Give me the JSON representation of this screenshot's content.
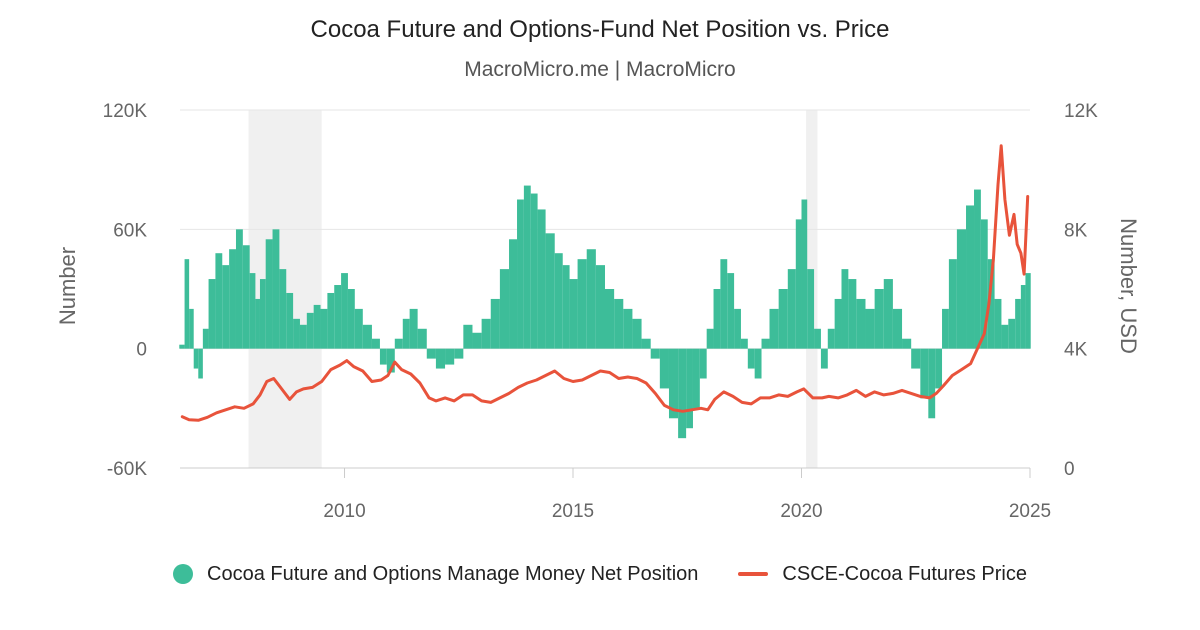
{
  "header": {
    "title": "Cocoa Future and Options-Fund Net Position vs. Price",
    "subtitle": "MacroMicro.me | MacroMicro"
  },
  "colors": {
    "position": "#3dbd99",
    "price": "#e8533b",
    "recession": "#f0f0f0",
    "grid": "#e6e6e6"
  },
  "chart_data": {
    "type": "bar+line",
    "title": "Cocoa Future and Options-Fund Net Position vs. Price",
    "subtitle": "MacroMicro.me | MacroMicro",
    "x_axis": {
      "type": "time",
      "range": [
        2006.4,
        2025.0
      ],
      "ticks": [
        2010,
        2015,
        2020,
        2025
      ],
      "tick_labels": [
        "2010",
        "2015",
        "2020",
        "2025"
      ]
    },
    "y_axis_left": {
      "label": "Number",
      "range": [
        -60000,
        120000
      ],
      "ticks": [
        -60000,
        0,
        60000,
        120000
      ],
      "tick_labels": [
        "-60K",
        "0",
        "60K",
        "120K"
      ]
    },
    "y_axis_right": {
      "label": "Number, USD",
      "range": [
        0,
        12000
      ],
      "ticks": [
        0,
        4000,
        8000,
        12000
      ],
      "tick_labels": [
        "0",
        "4K",
        "8K",
        "12K"
      ]
    },
    "recession_bands": [
      [
        2007.9,
        2009.5
      ],
      [
        2020.1,
        2020.35
      ]
    ],
    "series": [
      {
        "name": "Cocoa Future and Options Manage Money Net Position",
        "type": "bar",
        "axis": "left",
        "points": [
          [
            2006.45,
            2000
          ],
          [
            2006.55,
            45000
          ],
          [
            2006.65,
            20000
          ],
          [
            2006.75,
            -10000
          ],
          [
            2006.85,
            -15000
          ],
          [
            2006.95,
            10000
          ],
          [
            2007.1,
            35000
          ],
          [
            2007.25,
            48000
          ],
          [
            2007.4,
            42000
          ],
          [
            2007.55,
            50000
          ],
          [
            2007.7,
            60000
          ],
          [
            2007.85,
            52000
          ],
          [
            2008.0,
            38000
          ],
          [
            2008.1,
            25000
          ],
          [
            2008.2,
            35000
          ],
          [
            2008.35,
            55000
          ],
          [
            2008.5,
            60000
          ],
          [
            2008.65,
            40000
          ],
          [
            2008.8,
            28000
          ],
          [
            2008.95,
            15000
          ],
          [
            2009.1,
            12000
          ],
          [
            2009.25,
            18000
          ],
          [
            2009.4,
            22000
          ],
          [
            2009.55,
            20000
          ],
          [
            2009.7,
            28000
          ],
          [
            2009.85,
            32000
          ],
          [
            2010.0,
            38000
          ],
          [
            2010.15,
            30000
          ],
          [
            2010.3,
            20000
          ],
          [
            2010.5,
            12000
          ],
          [
            2010.7,
            5000
          ],
          [
            2010.85,
            -8000
          ],
          [
            2011.0,
            -12000
          ],
          [
            2011.2,
            5000
          ],
          [
            2011.35,
            15000
          ],
          [
            2011.5,
            20000
          ],
          [
            2011.7,
            10000
          ],
          [
            2011.9,
            -5000
          ],
          [
            2012.1,
            -10000
          ],
          [
            2012.3,
            -8000
          ],
          [
            2012.5,
            -5000
          ],
          [
            2012.7,
            12000
          ],
          [
            2012.9,
            8000
          ],
          [
            2013.1,
            15000
          ],
          [
            2013.3,
            25000
          ],
          [
            2013.5,
            40000
          ],
          [
            2013.7,
            55000
          ],
          [
            2013.85,
            75000
          ],
          [
            2014.0,
            82000
          ],
          [
            2014.15,
            78000
          ],
          [
            2014.3,
            70000
          ],
          [
            2014.5,
            58000
          ],
          [
            2014.7,
            48000
          ],
          [
            2014.85,
            42000
          ],
          [
            2015.0,
            35000
          ],
          [
            2015.2,
            45000
          ],
          [
            2015.4,
            50000
          ],
          [
            2015.6,
            42000
          ],
          [
            2015.8,
            30000
          ],
          [
            2016.0,
            25000
          ],
          [
            2016.2,
            20000
          ],
          [
            2016.4,
            15000
          ],
          [
            2016.6,
            5000
          ],
          [
            2016.8,
            -5000
          ],
          [
            2017.0,
            -20000
          ],
          [
            2017.2,
            -35000
          ],
          [
            2017.4,
            -45000
          ],
          [
            2017.55,
            -40000
          ],
          [
            2017.7,
            -30000
          ],
          [
            2017.85,
            -15000
          ],
          [
            2018.0,
            10000
          ],
          [
            2018.15,
            30000
          ],
          [
            2018.3,
            45000
          ],
          [
            2018.45,
            38000
          ],
          [
            2018.6,
            20000
          ],
          [
            2018.75,
            5000
          ],
          [
            2018.9,
            -10000
          ],
          [
            2019.05,
            -15000
          ],
          [
            2019.2,
            5000
          ],
          [
            2019.4,
            20000
          ],
          [
            2019.6,
            30000
          ],
          [
            2019.8,
            40000
          ],
          [
            2019.95,
            65000
          ],
          [
            2020.05,
            75000
          ],
          [
            2020.2,
            40000
          ],
          [
            2020.35,
            10000
          ],
          [
            2020.5,
            -10000
          ],
          [
            2020.65,
            10000
          ],
          [
            2020.8,
            25000
          ],
          [
            2020.95,
            40000
          ],
          [
            2021.1,
            35000
          ],
          [
            2021.3,
            25000
          ],
          [
            2021.5,
            20000
          ],
          [
            2021.7,
            30000
          ],
          [
            2021.9,
            35000
          ],
          [
            2022.1,
            20000
          ],
          [
            2022.3,
            5000
          ],
          [
            2022.5,
            -10000
          ],
          [
            2022.7,
            -25000
          ],
          [
            2022.85,
            -35000
          ],
          [
            2023.0,
            -20000
          ],
          [
            2023.15,
            20000
          ],
          [
            2023.3,
            45000
          ],
          [
            2023.5,
            60000
          ],
          [
            2023.7,
            72000
          ],
          [
            2023.85,
            80000
          ],
          [
            2024.0,
            65000
          ],
          [
            2024.15,
            45000
          ],
          [
            2024.3,
            25000
          ],
          [
            2024.45,
            12000
          ],
          [
            2024.6,
            15000
          ],
          [
            2024.75,
            25000
          ],
          [
            2024.85,
            32000
          ],
          [
            2024.95,
            38000
          ]
        ]
      },
      {
        "name": "CSCE-Cocoa Futures Price",
        "type": "line",
        "axis": "right",
        "points": [
          [
            2006.45,
            1720
          ],
          [
            2006.6,
            1620
          ],
          [
            2006.8,
            1600
          ],
          [
            2007.0,
            1700
          ],
          [
            2007.2,
            1850
          ],
          [
            2007.4,
            1950
          ],
          [
            2007.6,
            2050
          ],
          [
            2007.8,
            2000
          ],
          [
            2008.0,
            2150
          ],
          [
            2008.15,
            2450
          ],
          [
            2008.3,
            2900
          ],
          [
            2008.45,
            3000
          ],
          [
            2008.6,
            2700
          ],
          [
            2008.8,
            2300
          ],
          [
            2008.95,
            2550
          ],
          [
            2009.1,
            2650
          ],
          [
            2009.3,
            2700
          ],
          [
            2009.5,
            2900
          ],
          [
            2009.7,
            3300
          ],
          [
            2009.9,
            3450
          ],
          [
            2010.05,
            3600
          ],
          [
            2010.2,
            3400
          ],
          [
            2010.4,
            3250
          ],
          [
            2010.6,
            2900
          ],
          [
            2010.8,
            2950
          ],
          [
            2010.95,
            3100
          ],
          [
            2011.1,
            3550
          ],
          [
            2011.25,
            3300
          ],
          [
            2011.45,
            3150
          ],
          [
            2011.65,
            2850
          ],
          [
            2011.85,
            2350
          ],
          [
            2012.0,
            2250
          ],
          [
            2012.2,
            2350
          ],
          [
            2012.4,
            2250
          ],
          [
            2012.6,
            2450
          ],
          [
            2012.8,
            2450
          ],
          [
            2013.0,
            2250
          ],
          [
            2013.2,
            2200
          ],
          [
            2013.4,
            2350
          ],
          [
            2013.6,
            2500
          ],
          [
            2013.8,
            2700
          ],
          [
            2014.0,
            2850
          ],
          [
            2014.2,
            2950
          ],
          [
            2014.4,
            3100
          ],
          [
            2014.6,
            3250
          ],
          [
            2014.8,
            3000
          ],
          [
            2015.0,
            2900
          ],
          [
            2015.2,
            2950
          ],
          [
            2015.4,
            3100
          ],
          [
            2015.6,
            3250
          ],
          [
            2015.8,
            3200
          ],
          [
            2016.0,
            3000
          ],
          [
            2016.2,
            3050
          ],
          [
            2016.4,
            3000
          ],
          [
            2016.6,
            2850
          ],
          [
            2016.8,
            2500
          ],
          [
            2017.0,
            2100
          ],
          [
            2017.2,
            1950
          ],
          [
            2017.4,
            1900
          ],
          [
            2017.6,
            1950
          ],
          [
            2017.8,
            2000
          ],
          [
            2017.95,
            1950
          ],
          [
            2018.1,
            2300
          ],
          [
            2018.3,
            2550
          ],
          [
            2018.5,
            2400
          ],
          [
            2018.7,
            2200
          ],
          [
            2018.9,
            2150
          ],
          [
            2019.1,
            2350
          ],
          [
            2019.3,
            2350
          ],
          [
            2019.5,
            2450
          ],
          [
            2019.7,
            2400
          ],
          [
            2019.9,
            2550
          ],
          [
            2020.05,
            2650
          ],
          [
            2020.25,
            2350
          ],
          [
            2020.45,
            2350
          ],
          [
            2020.6,
            2400
          ],
          [
            2020.8,
            2350
          ],
          [
            2021.0,
            2450
          ],
          [
            2021.2,
            2600
          ],
          [
            2021.4,
            2400
          ],
          [
            2021.6,
            2550
          ],
          [
            2021.8,
            2450
          ],
          [
            2022.0,
            2500
          ],
          [
            2022.2,
            2600
          ],
          [
            2022.4,
            2500
          ],
          [
            2022.6,
            2400
          ],
          [
            2022.8,
            2350
          ],
          [
            2022.95,
            2500
          ],
          [
            2023.1,
            2750
          ],
          [
            2023.3,
            3100
          ],
          [
            2023.5,
            3300
          ],
          [
            2023.7,
            3500
          ],
          [
            2023.85,
            4000
          ],
          [
            2024.0,
            4500
          ],
          [
            2024.1,
            5500
          ],
          [
            2024.2,
            7000
          ],
          [
            2024.3,
            9500
          ],
          [
            2024.37,
            10800
          ],
          [
            2024.45,
            9000
          ],
          [
            2024.55,
            7800
          ],
          [
            2024.65,
            8500
          ],
          [
            2024.72,
            7500
          ],
          [
            2024.8,
            7200
          ],
          [
            2024.87,
            6500
          ],
          [
            2024.95,
            9100
          ]
        ]
      }
    ],
    "legend": {
      "position": "bottom"
    }
  },
  "legend": {
    "position_label": "Cocoa Future and Options Manage Money Net Position",
    "price_label": "CSCE-Cocoa Futures Price"
  }
}
